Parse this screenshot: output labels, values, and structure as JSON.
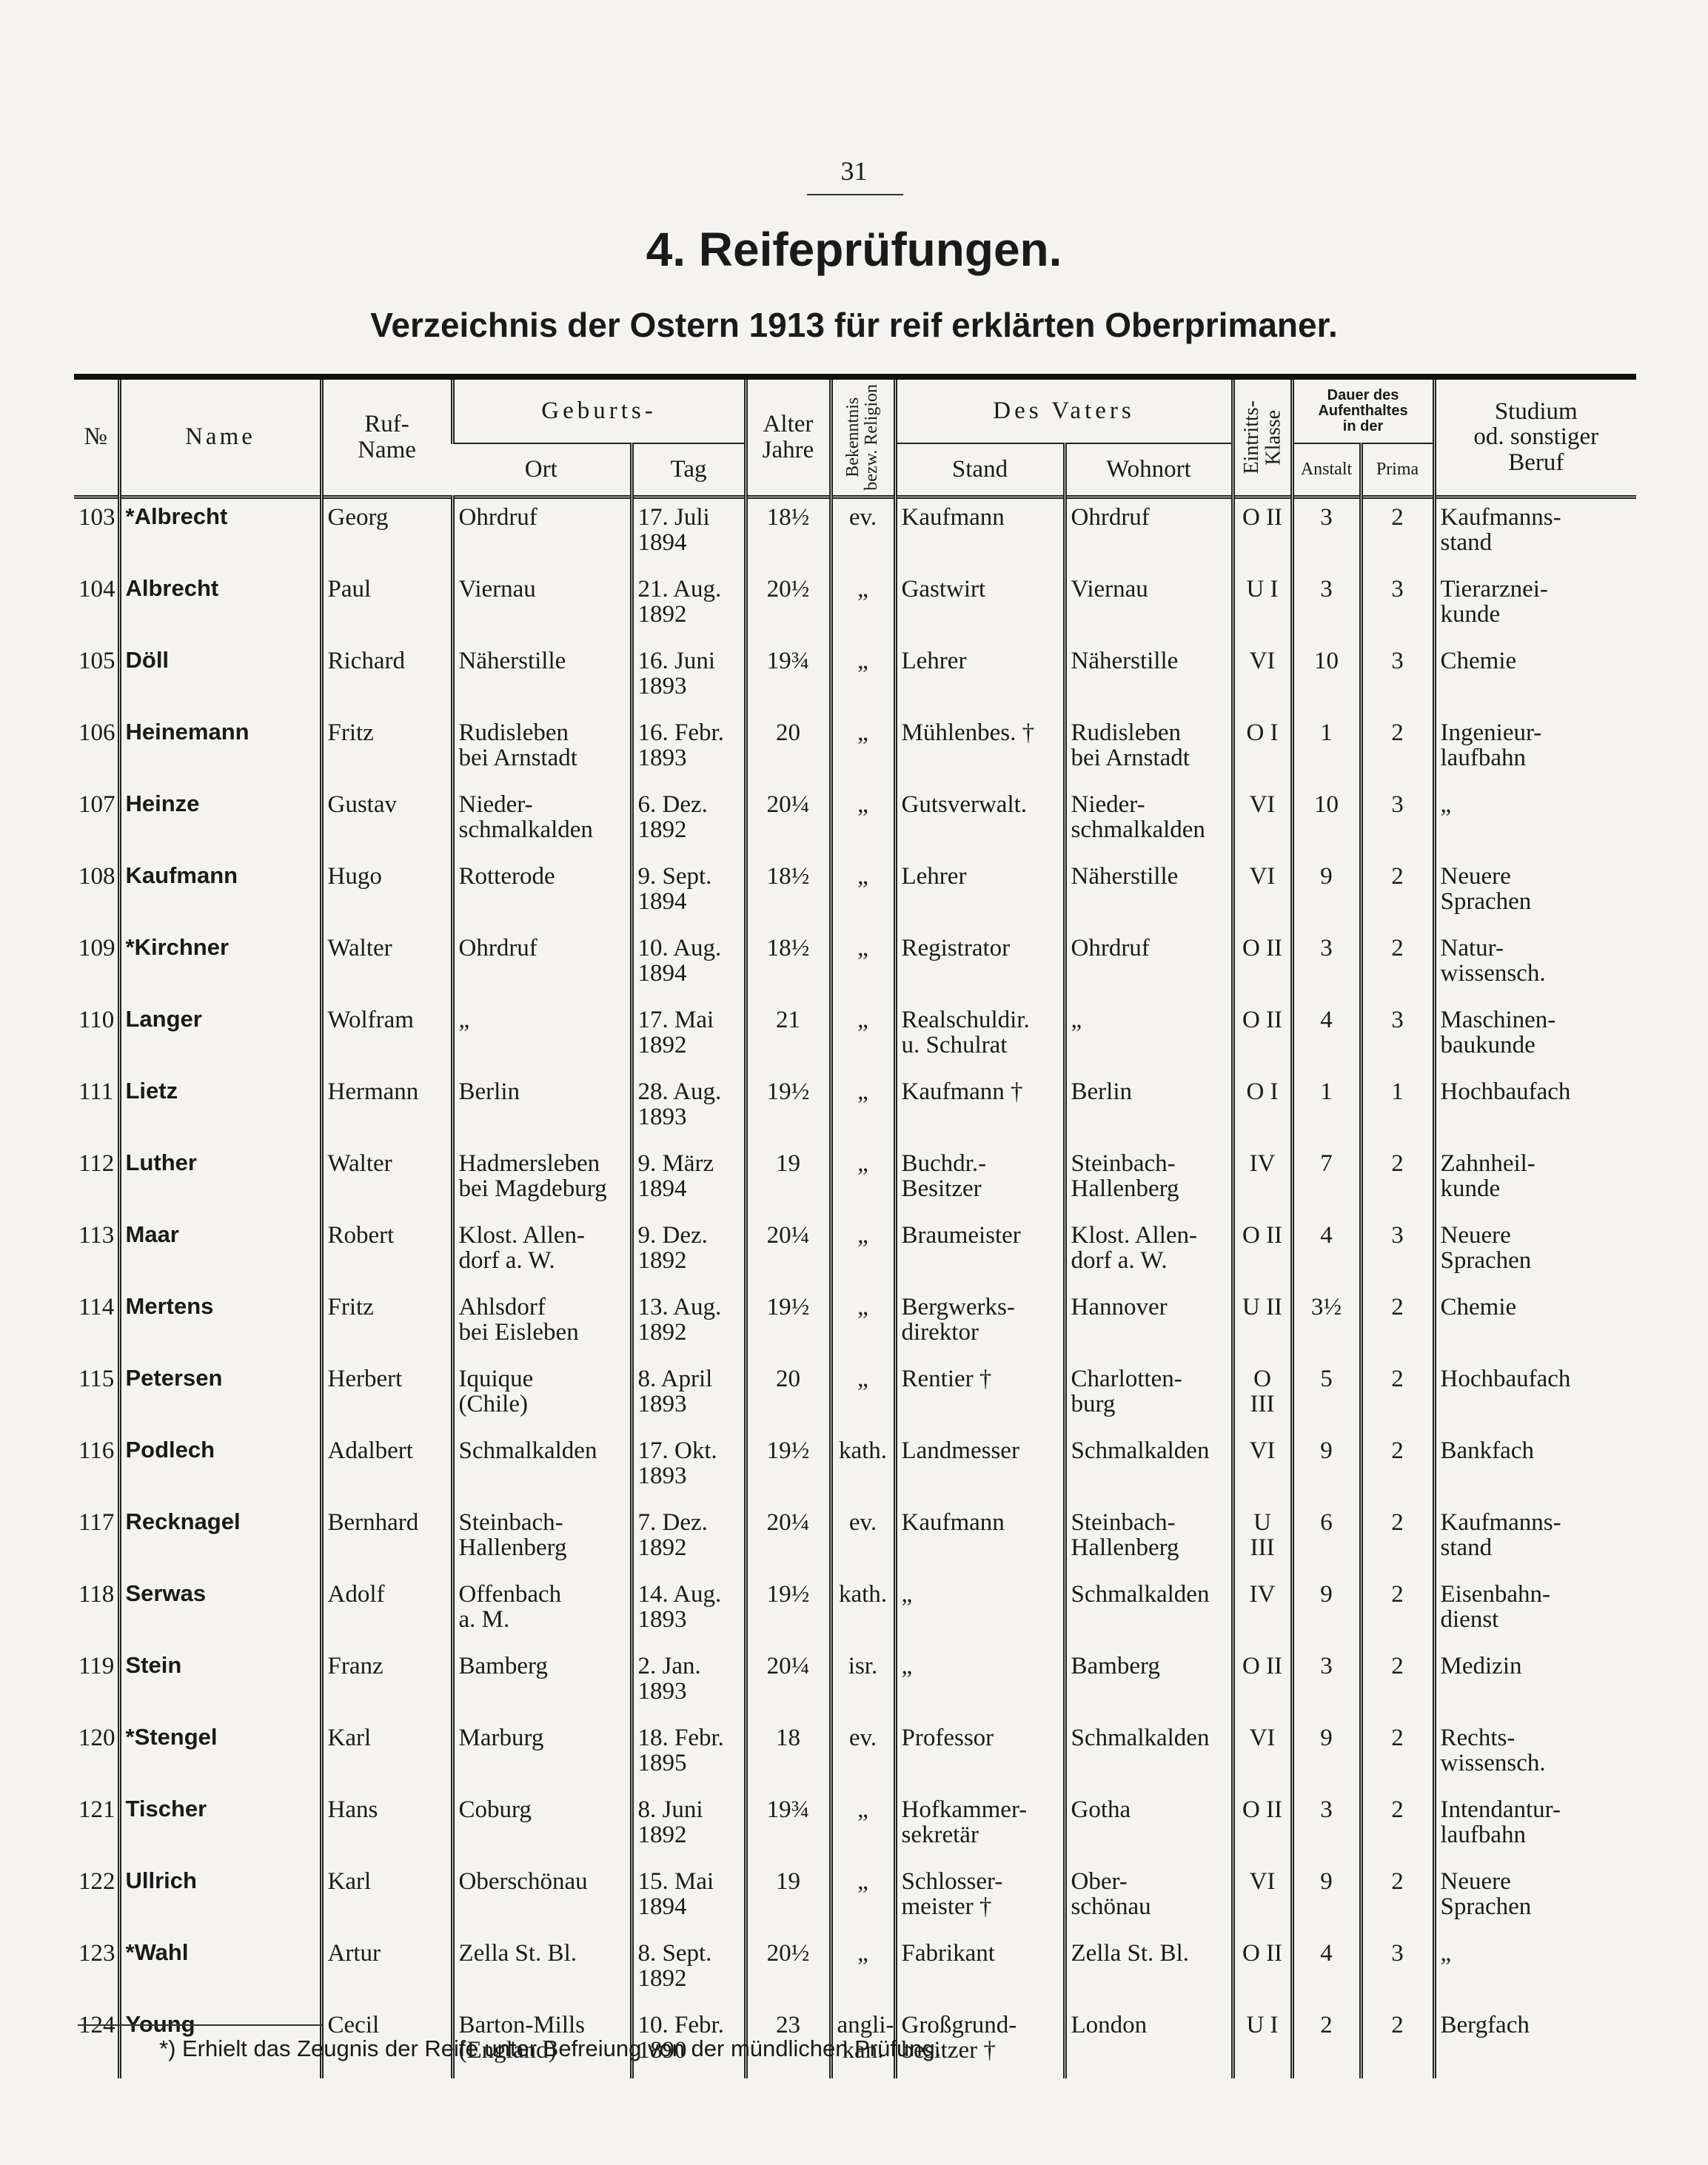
{
  "header": {
    "page_number": "31",
    "section_title": "4. Reifeprüfungen.",
    "subtitle": "Verzeichnis der Ostern 1913 für reif erklärten Oberprimaner."
  },
  "table": {
    "columns": {
      "no": "№",
      "name": "Name",
      "rufname": "Ruf-\nName",
      "geburts": "Geburts-",
      "ort": "Ort",
      "tag": "Tag",
      "alter": "Alter\nJahre",
      "religion": "Bekenntnis\nbezw. Religion",
      "vater": "Des Vaters",
      "stand": "Stand",
      "wohnort": "Wohnort",
      "klasse": "Eintritts-\nKlasse",
      "dauer": "Dauer des\nAufenthaltes\nin der",
      "anstalt": "Anstalt",
      "prima": "Prima",
      "beruf": "Studium\nod. sonstiger\nBeruf"
    },
    "rows": [
      [
        "103",
        "*Albrecht",
        "Georg",
        "Ohrdruf",
        "17. Juli\n1894",
        "18½",
        "ev.",
        "Kaufmann",
        "Ohrdruf",
        "O II",
        "3",
        "2",
        "Kaufmanns-\nstand"
      ],
      [
        "104",
        "Albrecht",
        "Paul",
        "Viernau",
        "21. Aug.\n1892",
        "20½",
        "„",
        "Gastwirt",
        "Viernau",
        "U I",
        "3",
        "3",
        "Tierarznei-\nkunde"
      ],
      [
        "105",
        "Döll",
        "Richard",
        "Näherstille",
        "16. Juni\n1893",
        "19¾",
        "„",
        "Lehrer",
        "Näherstille",
        "VI",
        "10",
        "3",
        "Chemie"
      ],
      [
        "106",
        "Heinemann",
        "Fritz",
        "Rudisleben\nbei Arnstadt",
        "16. Febr.\n1893",
        "20",
        "„",
        "Mühlenbes. †",
        "Rudisleben\nbei Arnstadt",
        "O I",
        "1",
        "2",
        "Ingenieur-\nlaufbahn"
      ],
      [
        "107",
        "Heinze",
        "Gustav",
        "Nieder-\nschmalkalden",
        "6. Dez.\n1892",
        "20¼",
        "„",
        "Gutsverwalt.",
        "Nieder-\nschmalkalden",
        "VI",
        "10",
        "3",
        "„"
      ],
      [
        "108",
        "Kaufmann",
        "Hugo",
        "Rotterode",
        "9. Sept.\n1894",
        "18½",
        "„",
        "Lehrer",
        "Näherstille",
        "VI",
        "9",
        "2",
        "Neuere\nSprachen"
      ],
      [
        "109",
        "*Kirchner",
        "Walter",
        "Ohrdruf",
        "10. Aug.\n1894",
        "18½",
        "„",
        "Registrator",
        "Ohrdruf",
        "O II",
        "3",
        "2",
        "Natur-\nwissensch."
      ],
      [
        "110",
        "Langer",
        "Wolfram",
        "„",
        "17. Mai\n1892",
        "21",
        "„",
        "Realschuldir.\nu. Schulrat",
        "„",
        "O II",
        "4",
        "3",
        "Maschinen-\nbaukunde"
      ],
      [
        "111",
        "Lietz",
        "Hermann",
        "Berlin",
        "28. Aug.\n1893",
        "19½",
        "„",
        "Kaufmann †",
        "Berlin",
        "O I",
        "1",
        "1",
        "Hochbaufach"
      ],
      [
        "112",
        "Luther",
        "Walter",
        "Hadmersleben\nbei Magdeburg",
        "9. März\n1894",
        "19",
        "„",
        "Buchdr.-\nBesitzer",
        "Steinbach-\nHallenberg",
        "IV",
        "7",
        "2",
        "Zahnheil-\nkunde"
      ],
      [
        "113",
        "Maar",
        "Robert",
        "Klost. Allen-\ndorf a. W.",
        "9. Dez.\n1892",
        "20¼",
        "„",
        "Braumeister",
        "Klost. Allen-\ndorf a. W.",
        "O II",
        "4",
        "3",
        "Neuere\nSprachen"
      ],
      [
        "114",
        "Mertens",
        "Fritz",
        "Ahlsdorf\nbei Eisleben",
        "13. Aug.\n1892",
        "19½",
        "„",
        "Bergwerks-\ndirektor",
        "Hannover",
        "U II",
        "3½",
        "2",
        "Chemie"
      ],
      [
        "115",
        "Petersen",
        "Herbert",
        "Iquique\n(Chile)",
        "8. April\n1893",
        "20",
        "„",
        "Rentier †",
        "Charlotten-\nburg",
        "O III",
        "5",
        "2",
        "Hochbaufach"
      ],
      [
        "116",
        "Podlech",
        "Adalbert",
        "Schmalkalden",
        "17. Okt.\n1893",
        "19½",
        "kath.",
        "Landmesser",
        "Schmalkalden",
        "VI",
        "9",
        "2",
        "Bankfach"
      ],
      [
        "117",
        "Recknagel",
        "Bernhard",
        "Steinbach-\nHallenberg",
        "7. Dez.\n1892",
        "20¼",
        "ev.",
        "Kaufmann",
        "Steinbach-\nHallenberg",
        "U III",
        "6",
        "2",
        "Kaufmanns-\nstand"
      ],
      [
        "118",
        "Serwas",
        "Adolf",
        "Offenbach\na. M.",
        "14. Aug.\n1893",
        "19½",
        "kath.",
        "„",
        "Schmalkalden",
        "IV",
        "9",
        "2",
        "Eisenbahn-\ndienst"
      ],
      [
        "119",
        "Stein",
        "Franz",
        "Bamberg",
        "2. Jan.\n1893",
        "20¼",
        "isr.",
        "„",
        "Bamberg",
        "O II",
        "3",
        "2",
        "Medizin"
      ],
      [
        "120",
        "*Stengel",
        "Karl",
        "Marburg",
        "18. Febr.\n1895",
        "18",
        "ev.",
        "Professor",
        "Schmalkalden",
        "VI",
        "9",
        "2",
        "Rechts-\nwissensch."
      ],
      [
        "121",
        "Tischer",
        "Hans",
        "Coburg",
        "8. Juni\n1892",
        "19¾",
        "„",
        "Hofkammer-\nsekretär",
        "Gotha",
        "O II",
        "3",
        "2",
        "Intendantur-\nlaufbahn"
      ],
      [
        "122",
        "Ullrich",
        "Karl",
        "Oberschönau",
        "15. Mai\n1894",
        "19",
        "„",
        "Schlosser-\nmeister †",
        "Ober-\nschönau",
        "VI",
        "9",
        "2",
        "Neuere\nSprachen"
      ],
      [
        "123",
        "*Wahl",
        "Artur",
        "Zella St. Bl.",
        "8. Sept.\n1892",
        "20½",
        "„",
        "Fabrikant",
        "Zella St. Bl.",
        "O II",
        "4",
        "3",
        "„"
      ],
      [
        "124",
        "Young",
        "Cecil",
        "Barton-Mills\n(England)",
        "10. Febr.\n1890",
        "23",
        "angli-\nkan.",
        "Großgrund-\nbesitzer †",
        "London",
        "U I",
        "2",
        "2",
        "Bergfach"
      ]
    ]
  },
  "footnote": "*) Erhielt das Zeugnis der Reife unter Befreiung von der mündlichen Prüfung."
}
